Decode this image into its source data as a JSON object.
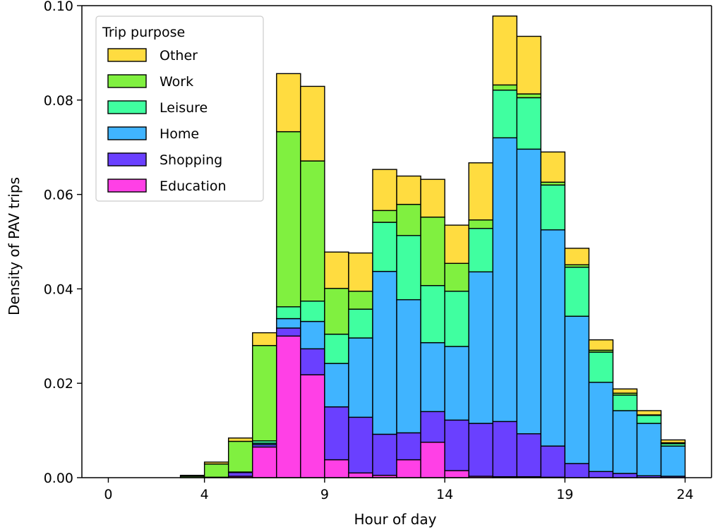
{
  "chart_data": {
    "type": "bar",
    "stacked": true,
    "xlabel": "Hour of day",
    "ylabel": "Density of PAV trips",
    "xlim": [
      -1.1,
      25.1
    ],
    "ylim": [
      0,
      0.1
    ],
    "x_ticks": [
      {
        "value": 0,
        "label": "0"
      },
      {
        "value": 4,
        "label": "4"
      },
      {
        "value": 9,
        "label": "9"
      },
      {
        "value": 14,
        "label": "14"
      },
      {
        "value": 19,
        "label": "19"
      },
      {
        "value": 24,
        "label": "24"
      }
    ],
    "y_ticks": [
      {
        "value": 0.0,
        "label": "0.00"
      },
      {
        "value": 0.02,
        "label": "0.02"
      },
      {
        "value": 0.04,
        "label": "0.04"
      },
      {
        "value": 0.06,
        "label": "0.06"
      },
      {
        "value": 0.08,
        "label": "0.08"
      },
      {
        "value": 0.1,
        "label": "0.10"
      }
    ],
    "grid": false,
    "legend": {
      "title": "Trip purpose",
      "position": "top-left"
    },
    "bins": [
      [
        0,
        1
      ],
      [
        1,
        2
      ],
      [
        2,
        3
      ],
      [
        3,
        4
      ],
      [
        4,
        5
      ],
      [
        5,
        6
      ],
      [
        6,
        7
      ],
      [
        7,
        8
      ],
      [
        8,
        9
      ],
      [
        9,
        10
      ],
      [
        10,
        11
      ],
      [
        11,
        12
      ],
      [
        12,
        13
      ],
      [
        13,
        14
      ],
      [
        14,
        15
      ],
      [
        15,
        16
      ],
      [
        16,
        17
      ],
      [
        17,
        18
      ],
      [
        18,
        19
      ],
      [
        19,
        20
      ],
      [
        20,
        21
      ],
      [
        21,
        22
      ],
      [
        22,
        23
      ],
      [
        23,
        24
      ]
    ],
    "series": [
      {
        "name": "Education",
        "color": "#ff40e6",
        "values": [
          0,
          0,
          0,
          0,
          0,
          0.0003,
          0.0065,
          0.03,
          0.0218,
          0.0038,
          0.001,
          0.0005,
          0.0038,
          0.0075,
          0.0015,
          0.0003,
          0.0002,
          0.0002,
          0.0001,
          0,
          0,
          0,
          0,
          0
        ]
      },
      {
        "name": "Shopping",
        "color": "#6a40ff",
        "values": [
          0,
          0,
          0,
          0,
          0.0001,
          0.0008,
          0.0005,
          0.0017,
          0.0055,
          0.0112,
          0.0118,
          0.0087,
          0.0057,
          0.0065,
          0.0107,
          0.0112,
          0.0117,
          0.0091,
          0.0066,
          0.003,
          0.0013,
          0.0009,
          0.0004,
          0.0003
        ]
      },
      {
        "name": "Home",
        "color": "#40b4ff",
        "values": [
          0,
          0,
          0,
          0,
          0,
          0,
          0.0003,
          0.002,
          0.0058,
          0.0092,
          0.0168,
          0.0345,
          0.0282,
          0.0146,
          0.0156,
          0.0321,
          0.0601,
          0.0603,
          0.0458,
          0.0312,
          0.0189,
          0.0133,
          0.0111,
          0.0064
        ]
      },
      {
        "name": "Leisure",
        "color": "#40ffa0",
        "values": [
          0,
          0,
          0,
          0,
          0,
          0.0001,
          0.0005,
          0.0025,
          0.0043,
          0.0062,
          0.0061,
          0.0104,
          0.0136,
          0.0121,
          0.0117,
          0.0092,
          0.0101,
          0.0109,
          0.0095,
          0.0104,
          0.0064,
          0.0033,
          0.0017,
          0.0005
        ]
      },
      {
        "name": "Work",
        "color": "#80f040",
        "values": [
          0,
          0,
          0,
          0.0003,
          0.0028,
          0.0065,
          0.0202,
          0.0371,
          0.0297,
          0.0097,
          0.0038,
          0.0025,
          0.0066,
          0.0145,
          0.0059,
          0.0018,
          0.0011,
          0.0008,
          0.0006,
          0.0005,
          0.0004,
          0.0004,
          0.0001,
          0.0002
        ]
      },
      {
        "name": "Other",
        "color": "#ffdc40",
        "values": [
          0,
          0,
          0,
          0.0002,
          0.0004,
          0.0007,
          0.0027,
          0.0123,
          0.0158,
          0.0077,
          0.0081,
          0.0087,
          0.006,
          0.008,
          0.0081,
          0.0121,
          0.0146,
          0.0122,
          0.0064,
          0.0035,
          0.0022,
          0.0009,
          0.0009,
          0.0006
        ]
      }
    ],
    "legend_order": [
      "Other",
      "Work",
      "Leisure",
      "Home",
      "Shopping",
      "Education"
    ]
  }
}
